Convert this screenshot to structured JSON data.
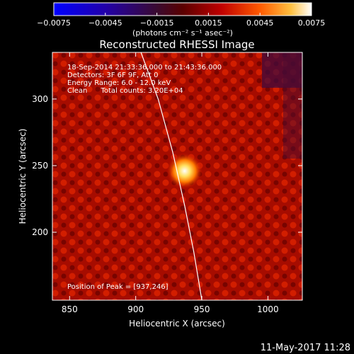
{
  "chart_data": {
    "type": "heatmap",
    "title": "Reconstructed RHESSI Image",
    "xlabel": "Heliocentric X (arcsec)",
    "ylabel": "Heliocentric Y (arcsec)",
    "xlim": [
      837,
      1026
    ],
    "ylim": [
      149,
      335
    ],
    "x_ticks": [
      850,
      900,
      950,
      1000
    ],
    "y_ticks": [
      200,
      250,
      300
    ],
    "colorbar": {
      "range": [
        -0.0075,
        0.0075
      ],
      "ticks": [
        -0.0075,
        -0.0045,
        -0.0015,
        0.0015,
        0.0045,
        0.0075
      ],
      "tick_labels": [
        "−0.0075",
        "−0.0045",
        "−0.0015",
        "0.0015",
        "0.0045",
        "0.0075"
      ],
      "unit_label": "(photons cm⁻² s⁻¹ asec⁻²)"
    },
    "annotations": [
      "18-Sep-2014 21:33:36.000 to 21:43:36.000",
      "Detectors: 3F 6F 9F, Att 0",
      "Energy Range: 6.0 - 12.0 keV",
      "Clean      Total counts: 3.20E+04"
    ],
    "peak": {
      "label": "Position of Peak = [937,246]",
      "x": 937,
      "y": 246
    },
    "limb": [
      [
        904,
        335
      ],
      [
        917,
        300
      ],
      [
        928,
        260
      ],
      [
        937,
        220
      ],
      [
        944,
        185
      ],
      [
        950,
        149
      ]
    ]
  },
  "footer_date": "11-May-2017 11:28"
}
